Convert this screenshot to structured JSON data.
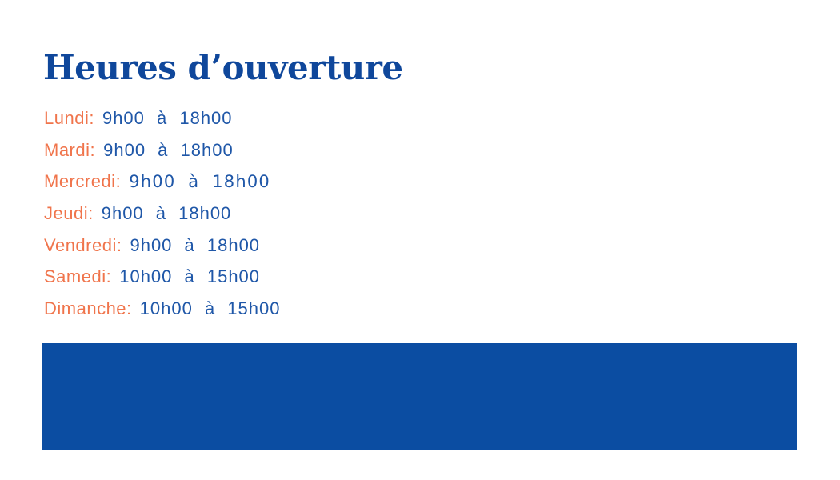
{
  "header": {
    "title": "Heures d’ouverture"
  },
  "hours": {
    "items": [
      {
        "day": "Lundi:",
        "time": "9h00 à 18h00"
      },
      {
        "day": "Mardi:",
        "time": "9h00 à 18h00"
      },
      {
        "day": "Mercredi:",
        "time": "9h00 à 18h00"
      },
      {
        "day": "Jeudi:",
        "time": "9h00 à 18h00"
      },
      {
        "day": "Vendredi:",
        "time": "9h00 à 18h00"
      },
      {
        "day": "Samedi:",
        "time": "10h00 à 15h00"
      },
      {
        "day": "Dimanche:",
        "time": "10h00 à 15h00"
      }
    ]
  },
  "colors": {
    "title_blue": "#0F479B",
    "day_orange": "#F0744B",
    "time_blue": "#1F57A8",
    "banner_blue": "#0B4DA2"
  }
}
